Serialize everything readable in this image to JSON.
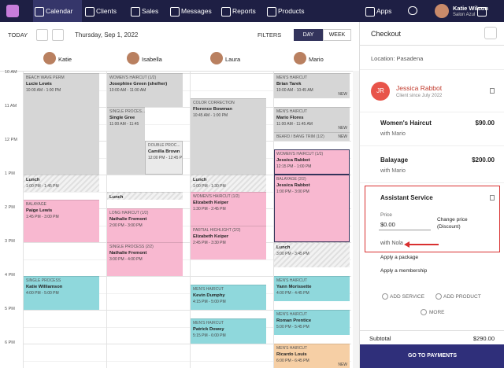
{
  "nav": {
    "items": [
      "Calendar",
      "Clients",
      "Sales",
      "Messages",
      "Reports",
      "Products"
    ],
    "apps": "Apps",
    "user": "Katie Wilson",
    "salon": "Salon Azul"
  },
  "toolbar": {
    "today": "TODAY",
    "date": "Thursday, Sep 1, 2022",
    "filters": "FILTERS",
    "day": "DAY",
    "week": "WEEK"
  },
  "staff": [
    "Katie",
    "Isabella",
    "Laura",
    "Mario"
  ],
  "hours": [
    "10 AM",
    "11 AM",
    "12 PM",
    "1 PM",
    "2 PM",
    "3 PM",
    "4 PM",
    "5 PM",
    "6 PM"
  ],
  "appointments": [
    {
      "service": "BEACH WAVE PERM",
      "client": "Lucie Lewis",
      "time": "10:00 AM - 1:00 PM"
    },
    {
      "service": "Lunch",
      "time": "1:00 PM - 1:45 PM"
    },
    {
      "service": "BALAYAGE",
      "client": "Paige Lewis",
      "time": "1:45 PM - 3:00 PM"
    },
    {
      "service": "SINGLE PROCESS",
      "client": "Katie Williamson",
      "time": "4:00 PM - 5:00 PM"
    },
    {
      "service": "WOMEN'S HAIRCUT (1/2)",
      "client": "Josephine Green (she/her)",
      "time": "10:00 AM - 11:00 AM"
    },
    {
      "service": "SINGLE PROCES...",
      "client": "Single Gree",
      "time": "11:00 AM - 11:45"
    },
    {
      "service": "DOUBLE PROC...",
      "client": "Camilla Brown",
      "time": "12:00 PM - 12:45 PM"
    },
    {
      "service": "Lunch",
      "time": "1:45 PM - 2:00 PM"
    },
    {
      "service": "LONG HAIRCUT (1/2)",
      "client": "Nathalie Fremont",
      "time": "2:00 PM - 3:00 PM"
    },
    {
      "service": "SINGLE PROCESS (2/2)",
      "client": "Nathalie Fremont",
      "time": "3:00 PM - 4:00 PM"
    },
    {
      "service": "COLOR CORRECTION",
      "client": "Florence Bowman",
      "time": "10:45 AM - 1:00 PM"
    },
    {
      "service": "Lunch",
      "time": "1:00 PM - 1:30 PM"
    },
    {
      "service": "WOMEN'S HAIRCUT (1/2)",
      "client": "Elizabeth Keiper",
      "time": "1:30 PM - 2:45 PM"
    },
    {
      "service": "PARTIAL HIGHLIGHT (2/2)",
      "client": "Elizabeth Keiper",
      "time": "2:45 PM - 3:30 PM"
    },
    {
      "service": "MEN'S HAIRCUT",
      "client": "Kevin Dumphy",
      "time": "4:15 PM - 5:00 PM"
    },
    {
      "service": "MEN'S HAIRCUT",
      "client": "Patrick Dowey",
      "time": "5:15 PM - 6:00 PM"
    },
    {
      "service": "MEN'S HAIRCUT",
      "client": "Brian Tarek",
      "time": "10:00 AM - 10:45 AM",
      "badge": "NEW"
    },
    {
      "service": "MEN'S HAIRCUT",
      "client": "Mario Flores",
      "time": "11:00 AM - 11:45 AM",
      "badge": "NEW"
    },
    {
      "service": "BEARD / BANG TRIM (1/2)",
      "time": "11:45 AM - 12:00 PM",
      "badge": "NEW"
    },
    {
      "service": "WOMEN'S HAIRCUT (1/2)",
      "client": "Jessica Rabbot",
      "time": "12:15 PM - 1:00 PM"
    },
    {
      "service": "BALAYAGE (2/2)",
      "client": "Jessica Rabbot",
      "time": "1:00 PM - 3:00 PM"
    },
    {
      "service": "Lunch",
      "time": "3:00 PM - 3:45 PM"
    },
    {
      "service": "MEN'S HAIRCUT",
      "client": "Yann Morissette",
      "time": "4:00 PM - 4:45 PM"
    },
    {
      "service": "MEN'S HAIRCUT",
      "client": "Roman Prentice",
      "time": "5:00 PM - 5:45 PM"
    },
    {
      "service": "MEN'S HAIRCUT",
      "client": "Ricardo Louis",
      "time": "6:00 PM - 6:45 PM",
      "badge": "NEW"
    }
  ],
  "checkout": {
    "title": "Checkout",
    "location": "Location: Pasadena",
    "client": {
      "initials": "JR",
      "name": "Jessica Rabbot",
      "since": "Client since July 2022"
    },
    "services": [
      {
        "name": "Women's Haircut",
        "price": "$90.00",
        "with": "with Mario"
      },
      {
        "name": "Balayage",
        "price": "$200.00",
        "with": "with Mario"
      }
    ],
    "assistant": {
      "name": "Assistant Service",
      "price_label": "Price",
      "price": "$0.00",
      "change": "Change price",
      "discount": "(Discount)",
      "with": "with Nola"
    },
    "apply_package": "Apply a package",
    "apply_membership": "Apply a membership",
    "add_service": "ADD SERVICE",
    "add_product": "ADD PRODUCT",
    "more": "MORE",
    "subtotal_label": "Subtotal",
    "subtotal": "$290.00",
    "pay": "GO TO PAYMENTS"
  }
}
